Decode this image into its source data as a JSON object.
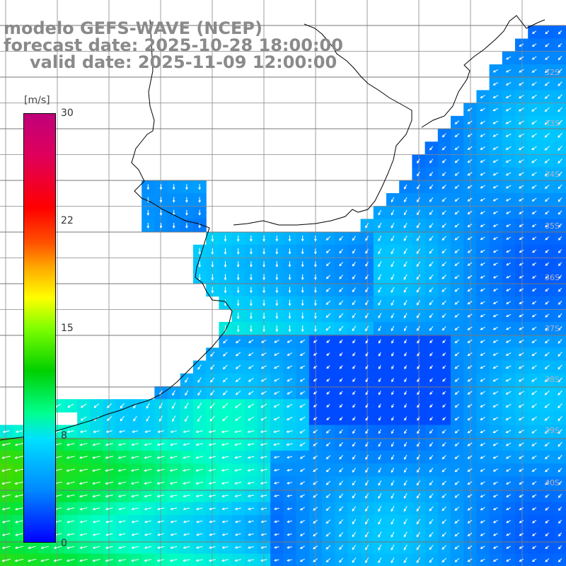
{
  "title": {
    "line1": "modelo GEFS-WAVE (NCEP)",
    "line2": "forecast date: 2025-10-28 18:00:00",
    "line3": "valid date: 2025-11-09 12:00:00"
  },
  "colorbar": {
    "unit": "[m/s]",
    "ticks": [
      "30",
      "22",
      "15",
      "8",
      "0"
    ],
    "tick_values": [
      30,
      22,
      15,
      8,
      0
    ],
    "min": 0,
    "max": 30,
    "colors": [
      "#0000ff",
      "#0088ff",
      "#00e0ff",
      "#00ff90",
      "#00d000",
      "#80ff00",
      "#ffff00",
      "#ffaa00",
      "#ff5000",
      "#ff0000",
      "#c0007a"
    ]
  },
  "lat_labels": [
    "32S",
    "33S",
    "34S",
    "35S",
    "36S",
    "37S",
    "38S",
    "39S",
    "40S"
  ],
  "colors": {
    "land": "#ffffff",
    "grid": "#888888",
    "coastline": "#000000",
    "arrows": "#ffffff",
    "title_text": "#8a8a8a"
  }
}
